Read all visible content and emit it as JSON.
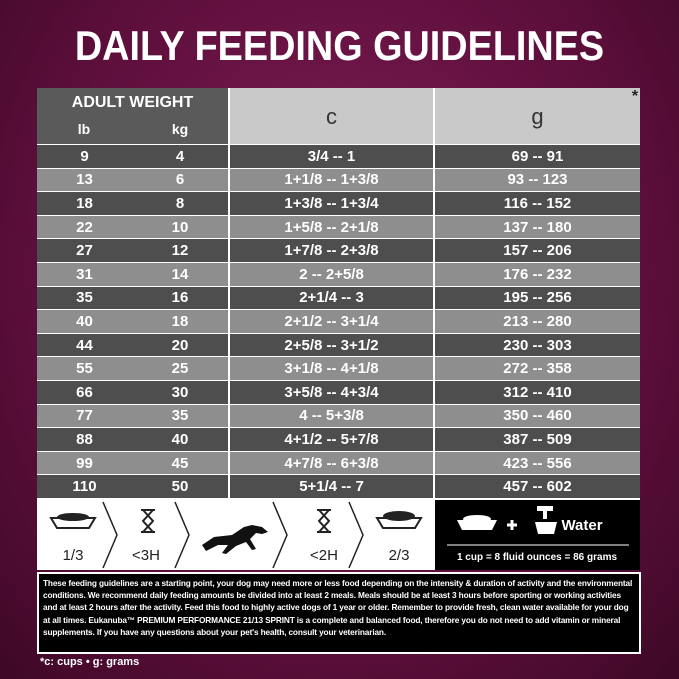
{
  "header": {
    "title": "DAILY FEEDING GUIDELINES"
  },
  "table": {
    "group_header": "ADULT WEIGHT",
    "note_marker": "*",
    "columns": [
      "lb",
      "kg",
      "c",
      "g"
    ],
    "rows": [
      [
        "9",
        "4",
        "3/4 -- 1",
        "69 -- 91"
      ],
      [
        "13",
        "6",
        "1+1/8 -- 1+3/8",
        "93 -- 123"
      ],
      [
        "18",
        "8",
        "1+3/8 -- 1+3/4",
        "116 -- 152"
      ],
      [
        "22",
        "10",
        "1+5/8 -- 2+1/8",
        "137 -- 180"
      ],
      [
        "27",
        "12",
        "1+7/8 -- 2+3/8",
        "157 -- 206"
      ],
      [
        "31",
        "14",
        "2 -- 2+5/8",
        "176 -- 232"
      ],
      [
        "35",
        "16",
        "2+1/4 -- 3",
        "195 -- 256"
      ],
      [
        "40",
        "18",
        "2+1/2 -- 3+1/4",
        "213 -- 280"
      ],
      [
        "44",
        "20",
        "2+5/8 -- 3+1/2",
        "230 -- 303"
      ],
      [
        "55",
        "25",
        "3+1/8 -- 4+1/8",
        "272 -- 358"
      ],
      [
        "66",
        "30",
        "3+5/8 -- 4+3/4",
        "312 -- 410"
      ],
      [
        "77",
        "35",
        "4 -- 5+3/8",
        "350 -- 460"
      ],
      [
        "88",
        "40",
        "4+1/2 -- 5+7/8",
        "387 -- 509"
      ],
      [
        "99",
        "45",
        "4+7/8 -- 6+3/8",
        "423 -- 556"
      ],
      [
        "110",
        "50",
        "5+1/4 -- 7",
        "457 -- 602"
      ]
    ]
  },
  "icons": {
    "labels": [
      "1/3",
      "<3H",
      "<2H",
      "2/3"
    ],
    "water": "Water",
    "conversion": "1 cup = 8 fluid ounces = 86 grams"
  },
  "notes": {
    "paragraph": "These feeding guidelines are a starting point, your dog may need more or less food depending on the intensity & duration of activity and the environmental conditions. We recommend daily feeding amounts be divided into at least 2 meals. Meals should be at least 3 hours before sporting or working activities and at least 2 hours after the activity. Feed this food to highly active dogs of 1 year or older. Remember to provide fresh, clean water available for your dog at all times. Eukanuba™ PREMIUM PERFORMANCE 21/13 SPRINT is a complete and balanced food, therefore you do not need to add vitamin or mineral supplements. If you have any questions about your pet's health, consult your veterinarian.",
    "footnote": "*c: cups • g: grams"
  }
}
